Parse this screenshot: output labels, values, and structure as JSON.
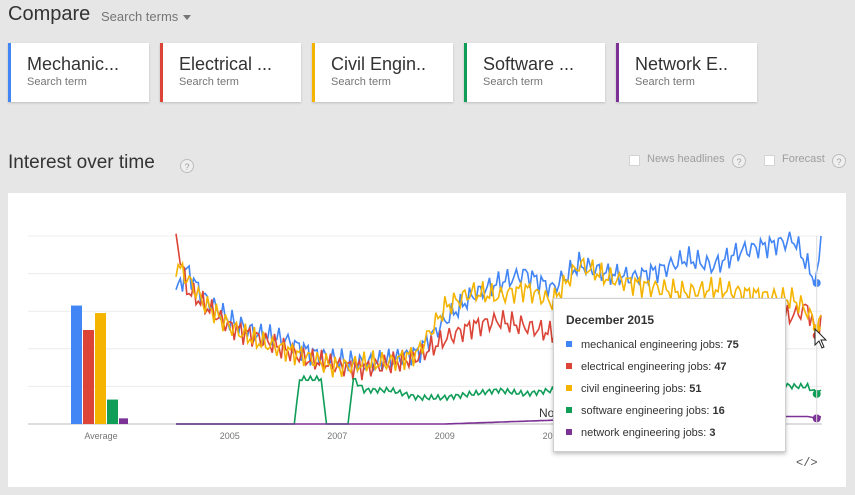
{
  "header": {
    "title": "Compare",
    "search_terms_label": "Search terms"
  },
  "cards": [
    {
      "term": "Mechanic...",
      "subtitle": "Search term",
      "color": "#4285f4"
    },
    {
      "term": "Electrical ...",
      "subtitle": "Search term",
      "color": "#db4437"
    },
    {
      "term": "Civil Engin..",
      "subtitle": "Search term",
      "color": "#f4b400"
    },
    {
      "term": "Software ...",
      "subtitle": "Search term",
      "color": "#0f9d58"
    },
    {
      "term": "Network E..",
      "subtitle": "Search term",
      "color": "#7b3294"
    }
  ],
  "section": {
    "title": "Interest over time",
    "help": "?",
    "news_headlines_label": "News headlines",
    "forecast_label": "Forecast"
  },
  "chart_data": {
    "type": "line",
    "x_ticks": [
      "2005",
      "2007",
      "2009",
      "2011"
    ],
    "average_label": "Average",
    "averages": [
      {
        "name": "mechanical engineering jobs",
        "value": 63,
        "color": "#4285f4"
      },
      {
        "name": "electrical engineering jobs",
        "value": 50,
        "color": "#db4437"
      },
      {
        "name": "civil engineering jobs",
        "value": 59,
        "color": "#f4b400"
      },
      {
        "name": "software engineering jobs",
        "value": 13,
        "color": "#0f9d58"
      },
      {
        "name": "network engineering jobs",
        "value": 3,
        "color": "#7b3294"
      }
    ],
    "series": [
      {
        "name": "mechanical engineering jobs",
        "color": "#4285f4",
        "points": [
          [
            2004.0,
            70
          ],
          [
            2004.2,
            82
          ],
          [
            2004.5,
            68
          ],
          [
            2005.0,
            55
          ],
          [
            2005.5,
            48
          ],
          [
            2006.0,
            45
          ],
          [
            2006.5,
            38
          ],
          [
            2007.0,
            34
          ],
          [
            2007.5,
            32
          ],
          [
            2008.0,
            34
          ],
          [
            2008.5,
            38
          ],
          [
            2009.0,
            55
          ],
          [
            2009.5,
            68
          ],
          [
            2010.0,
            75
          ],
          [
            2010.5,
            80
          ],
          [
            2011.0,
            72
          ],
          [
            2011.5,
            85
          ],
          [
            2012.0,
            80
          ],
          [
            2012.5,
            78
          ],
          [
            2013.0,
            82
          ],
          [
            2013.5,
            88
          ],
          [
            2014.0,
            84
          ],
          [
            2014.5,
            92
          ],
          [
            2015.0,
            95
          ],
          [
            2015.5,
            98
          ],
          [
            2015.75,
            84
          ],
          [
            2015.92,
            75
          ],
          [
            2016.0,
            100
          ]
        ]
      },
      {
        "name": "electrical engineering jobs",
        "color": "#db4437",
        "points": [
          [
            2004.0,
            100
          ],
          [
            2004.2,
            72
          ],
          [
            2004.5,
            64
          ],
          [
            2005.0,
            52
          ],
          [
            2005.5,
            46
          ],
          [
            2006.0,
            40
          ],
          [
            2006.5,
            34
          ],
          [
            2007.0,
            31
          ],
          [
            2007.5,
            30
          ],
          [
            2008.0,
            32
          ],
          [
            2008.5,
            36
          ],
          [
            2009.0,
            45
          ],
          [
            2009.5,
            52
          ],
          [
            2010.0,
            55
          ],
          [
            2010.5,
            52
          ],
          [
            2011.0,
            48
          ],
          [
            2011.5,
            52
          ],
          [
            2012.0,
            50
          ],
          [
            2012.5,
            54
          ],
          [
            2013.0,
            50
          ],
          [
            2013.5,
            52
          ],
          [
            2014.0,
            55
          ],
          [
            2014.5,
            54
          ],
          [
            2015.0,
            56
          ],
          [
            2015.5,
            58
          ],
          [
            2015.75,
            62
          ],
          [
            2015.92,
            47
          ],
          [
            2016.0,
            58
          ]
        ]
      },
      {
        "name": "civil engineering jobs",
        "color": "#f4b400",
        "points": [
          [
            2004.0,
            85
          ],
          [
            2004.2,
            78
          ],
          [
            2004.5,
            65
          ],
          [
            2005.0,
            52
          ],
          [
            2005.5,
            44
          ],
          [
            2006.0,
            40
          ],
          [
            2006.5,
            35
          ],
          [
            2007.0,
            30
          ],
          [
            2007.5,
            32
          ],
          [
            2008.0,
            33
          ],
          [
            2008.5,
            38
          ],
          [
            2009.0,
            62
          ],
          [
            2009.5,
            70
          ],
          [
            2010.0,
            68
          ],
          [
            2010.5,
            72
          ],
          [
            2011.0,
            65
          ],
          [
            2011.5,
            85
          ],
          [
            2012.0,
            78
          ],
          [
            2012.5,
            75
          ],
          [
            2013.0,
            72
          ],
          [
            2013.5,
            70
          ],
          [
            2014.0,
            72
          ],
          [
            2014.5,
            70
          ],
          [
            2015.0,
            68
          ],
          [
            2015.5,
            66
          ],
          [
            2015.75,
            60
          ],
          [
            2015.92,
            51
          ],
          [
            2016.0,
            58
          ]
        ]
      },
      {
        "name": "software engineering jobs",
        "color": "#0f9d58",
        "points": [
          [
            2004.0,
            0
          ],
          [
            2006.2,
            0
          ],
          [
            2006.3,
            24
          ],
          [
            2006.7,
            24
          ],
          [
            2006.8,
            0
          ],
          [
            2007.2,
            0
          ],
          [
            2007.3,
            24
          ],
          [
            2007.5,
            18
          ],
          [
            2008.0,
            18
          ],
          [
            2008.5,
            14
          ],
          [
            2009.0,
            14
          ],
          [
            2009.5,
            16
          ],
          [
            2010.0,
            18
          ],
          [
            2010.5,
            16
          ],
          [
            2011.0,
            18
          ],
          [
            2011.5,
            18
          ],
          [
            2012.0,
            18
          ],
          [
            2012.5,
            20
          ],
          [
            2013.0,
            20
          ],
          [
            2013.5,
            22
          ],
          [
            2014.0,
            22
          ],
          [
            2014.5,
            22
          ],
          [
            2015.0,
            22
          ],
          [
            2015.5,
            20
          ],
          [
            2015.75,
            20
          ],
          [
            2015.92,
            16
          ],
          [
            2016.0,
            18
          ]
        ]
      },
      {
        "name": "network engineering jobs",
        "color": "#7b3294",
        "points": [
          [
            2004.0,
            0
          ],
          [
            2009.0,
            0
          ],
          [
            2010.0,
            1
          ],
          [
            2011.0,
            2
          ],
          [
            2012.0,
            2
          ],
          [
            2013.0,
            3
          ],
          [
            2014.0,
            3
          ],
          [
            2015.0,
            4
          ],
          [
            2015.5,
            4
          ],
          [
            2015.75,
            4
          ],
          [
            2015.92,
            3
          ],
          [
            2016.0,
            4
          ]
        ]
      }
    ],
    "ylim": [
      0,
      100
    ],
    "xlim": [
      2004,
      2016
    ]
  },
  "tooltip": {
    "date": "December 2015",
    "rows": [
      {
        "label": "mechanical engineering jobs:",
        "value": "75",
        "color": "#4285f4"
      },
      {
        "label": "electrical engineering jobs:",
        "value": "47",
        "color": "#db4437"
      },
      {
        "label": "civil engineering jobs:",
        "value": "51",
        "color": "#f4b400"
      },
      {
        "label": "software engineering jobs:",
        "value": "16",
        "color": "#0f9d58"
      },
      {
        "label": "network engineering jobs:",
        "value": "3",
        "color": "#7b3294"
      }
    ]
  },
  "annotation_peek": "No",
  "embed_label": "</>"
}
